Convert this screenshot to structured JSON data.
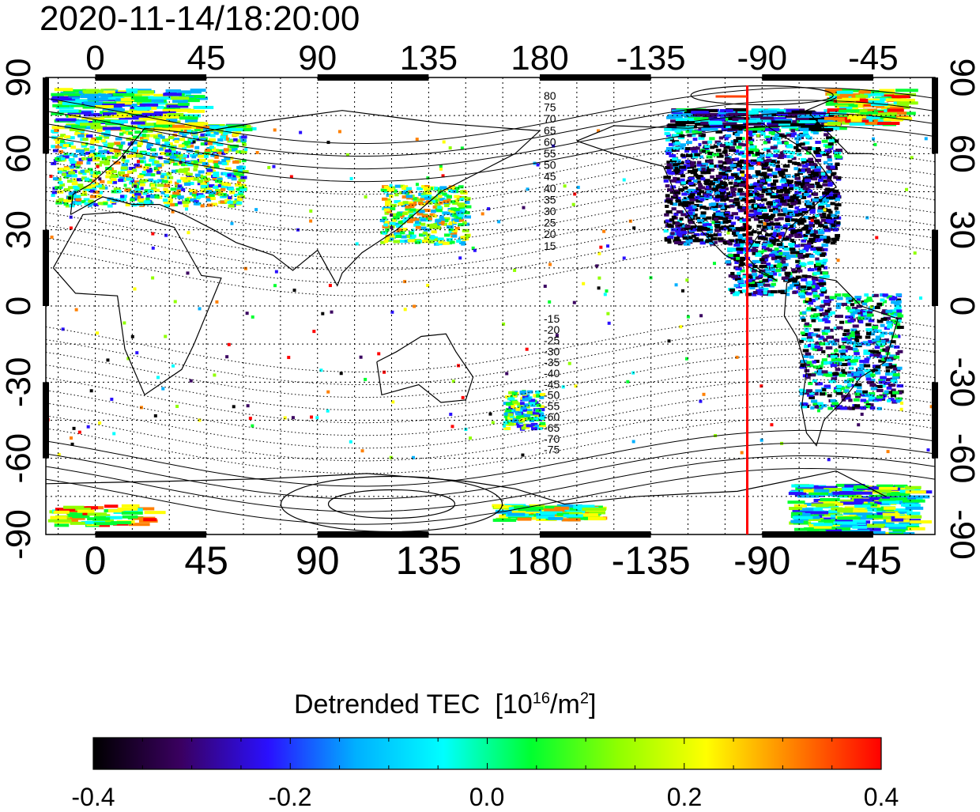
{
  "timestamp": "2020-11-14/18:20:00",
  "map": {
    "type": "equirectangular",
    "lon_start": -20,
    "lon_span": 360,
    "lat_range": [
      -90,
      90
    ],
    "top_lon_ticks": [
      "0",
      "45",
      "90",
      "135",
      "180",
      "-135",
      "-90",
      "-45"
    ],
    "bottom_lon_ticks": [
      "0",
      "45",
      "90",
      "135",
      "180",
      "-135",
      "-90",
      "-45"
    ],
    "left_lat_ticks": [
      "90",
      "60",
      "30",
      "0",
      "-30",
      "-60",
      "-90"
    ],
    "right_lat_ticks": [
      "90",
      "60",
      "30",
      "0",
      "-30",
      "-60",
      "-90"
    ],
    "grid": "dotted-15deg",
    "marker_line": {
      "lon": -96,
      "color": "#ff0000"
    },
    "contour_labels_north": [
      "80",
      "75",
      "70",
      "65",
      "60",
      "55",
      "50",
      "45",
      "40",
      "35",
      "30",
      "25",
      "20",
      "15"
    ],
    "contour_labels_south": [
      "-15",
      "-20",
      "-25",
      "-30",
      "-35",
      "-40",
      "-45",
      "-50",
      "-55",
      "-60",
      "-65",
      "-70",
      "-75"
    ]
  },
  "colorbar": {
    "title_main": "Detrended TEC",
    "title_unit_prefix": "[10",
    "title_exp1": "16",
    "title_unit_mid": "/m",
    "title_exp2": "2",
    "title_unit_suffix": "]",
    "min": -0.4,
    "max": 0.4,
    "tick_labels": [
      "-0.4",
      "-0.2",
      "0.0",
      "0.2",
      "0.4"
    ],
    "colormap": [
      "#000000",
      "#3a0060",
      "#2a10ff",
      "#00b0ff",
      "#00ffff",
      "#00ff30",
      "#90ff00",
      "#ffff00",
      "#ff8000",
      "#ff0000"
    ]
  },
  "colors": {
    "grid": "#000000",
    "coast": "#000000",
    "marker": "#ff0000"
  }
}
